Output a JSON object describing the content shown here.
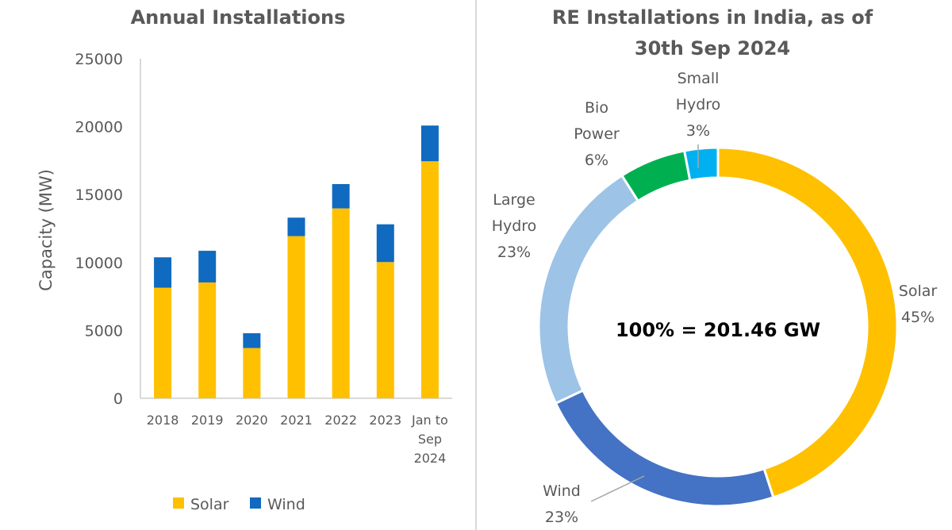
{
  "chart_data": [
    {
      "type": "bar",
      "stacked": true,
      "title": "Annual Installations",
      "ylabel": "Capacity (MW)",
      "xlabel": "",
      "ylim": [
        0,
        25000
      ],
      "yticks": [
        0,
        5000,
        10000,
        15000,
        20000,
        25000
      ],
      "categories": [
        "2018",
        "2019",
        "2020",
        "2021",
        "2022",
        "2023",
        "Jan to Sep 2024"
      ],
      "series": [
        {
          "name": "Solar",
          "color": "#FFC000",
          "values": [
            8140,
            8530,
            3700,
            11940,
            13980,
            10030,
            17450
          ]
        },
        {
          "name": "Wind",
          "color": "#0F6AC0",
          "values": [
            2240,
            2330,
            1090,
            1360,
            1790,
            2780,
            2630
          ]
        }
      ],
      "legend": "bottom",
      "grid": false
    },
    {
      "type": "pie",
      "donut": true,
      "title": "RE Installations in India, as of 30th Sep 2024",
      "center_label": "100% = 201.46 GW",
      "slices": [
        {
          "name": "Solar",
          "value": 45,
          "label": "45%",
          "color": "#FFC000"
        },
        {
          "name": "Wind",
          "value": 23,
          "label": "23%",
          "color": "#4472C4"
        },
        {
          "name": "Large Hydro",
          "value": 23,
          "label": "23%",
          "color": "#9DC3E6"
        },
        {
          "name": "Bio Power",
          "value": 6,
          "label": "6%",
          "color": "#00B050"
        },
        {
          "name": "Small Hydro",
          "value": 3,
          "label": "3%",
          "color": "#00B0F0"
        }
      ]
    }
  ]
}
